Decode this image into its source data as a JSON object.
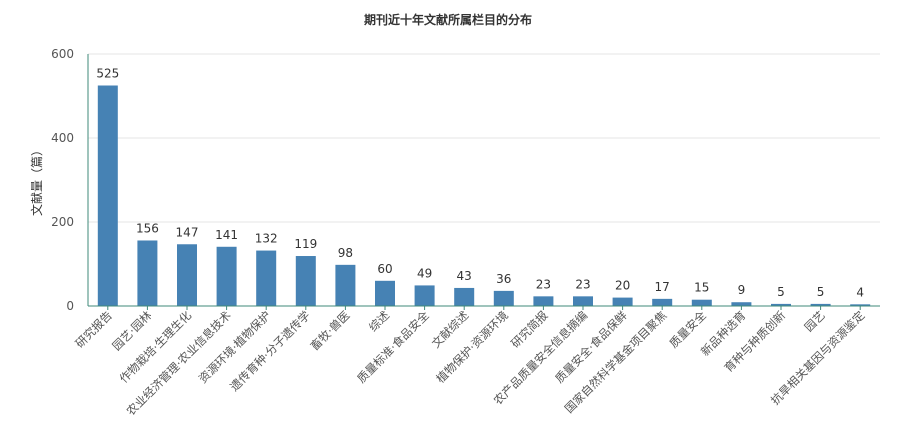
{
  "chart_data": {
    "type": "bar",
    "title": "期刊近十年文献所属栏目的分布",
    "xlabel": "",
    "ylabel": "文献量（篇）",
    "ylim": [
      0,
      600
    ],
    "yticks": [
      0,
      200,
      400,
      600
    ],
    "grid": true,
    "legend": "none",
    "bar_color": "#4682b4",
    "categories": [
      "研究报告",
      "园艺·园林",
      "作物栽培·生理生化",
      "农业经济管理·农业信息技术",
      "资源环境·植物保护",
      "遗传育种·分子遗传学",
      "畜牧·兽医",
      "综述",
      "质量标准·食品安全",
      "文献综述",
      "植物保护·资源环境",
      "研究简报",
      "农产品质量安全信息摘编",
      "质量安全·食品保鲜",
      "国家自然科学基金项目聚焦",
      "质量安全",
      "新品种选育",
      "育种与种质创新",
      "园艺",
      "抗旱相关基因与资源鉴定"
    ],
    "values": [
      525,
      156,
      147,
      141,
      132,
      119,
      98,
      60,
      49,
      43,
      36,
      23,
      23,
      20,
      17,
      15,
      9,
      5,
      5,
      4
    ]
  }
}
